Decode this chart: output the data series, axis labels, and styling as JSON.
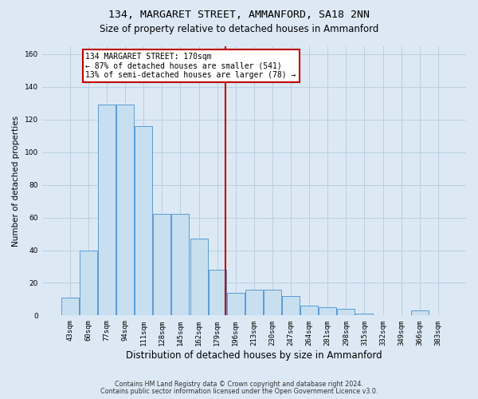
{
  "title": "134, MARGARET STREET, AMMANFORD, SA18 2NN",
  "subtitle": "Size of property relative to detached houses in Ammanford",
  "xlabel": "Distribution of detached houses by size in Ammanford",
  "ylabel": "Number of detached properties",
  "categories": [
    "43sqm",
    "60sqm",
    "77sqm",
    "94sqm",
    "111sqm",
    "128sqm",
    "145sqm",
    "162sqm",
    "179sqm",
    "196sqm",
    "213sqm",
    "230sqm",
    "247sqm",
    "264sqm",
    "281sqm",
    "298sqm",
    "315sqm",
    "332sqm",
    "349sqm",
    "366sqm",
    "383sqm"
  ],
  "values": [
    11,
    40,
    129,
    129,
    116,
    62,
    62,
    47,
    28,
    14,
    16,
    16,
    12,
    6,
    5,
    4,
    1,
    0,
    0,
    3,
    0
  ],
  "bar_color": "#c8dff0",
  "bar_edge_color": "#5b9bd5",
  "vline_x": 8.47,
  "vline_color": "#c00000",
  "annotation_text": "134 MARGARET STREET: 170sqm\n← 87% of detached houses are smaller (541)\n13% of semi-detached houses are larger (78) →",
  "annotation_box_color": "#ffffff",
  "annotation_box_edge_color": "#c00000",
  "ylim": [
    0,
    165
  ],
  "yticks": [
    0,
    20,
    40,
    60,
    80,
    100,
    120,
    140,
    160
  ],
  "grid_color": "#b8cfe0",
  "background_color": "#dce9f5",
  "footer_line1": "Contains HM Land Registry data © Crown copyright and database right 2024.",
  "footer_line2": "Contains public sector information licensed under the Open Government Licence v3.0.",
  "title_fontsize": 9.5,
  "subtitle_fontsize": 8.5,
  "xlabel_fontsize": 8.5,
  "ylabel_fontsize": 7.5,
  "tick_fontsize": 6.5,
  "annotation_fontsize": 7.0,
  "footer_fontsize": 5.8
}
